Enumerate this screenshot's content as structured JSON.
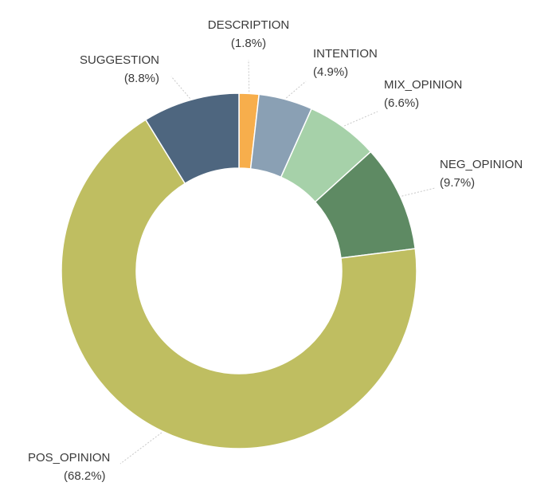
{
  "chart_data": {
    "type": "pie",
    "donut": true,
    "slices": [
      {
        "label": "DESCRIPTION",
        "percent_label": "(1.8%)",
        "value": 1.8,
        "color": "#F7AE4C"
      },
      {
        "label": "INTENTION",
        "percent_label": "(4.9%)",
        "value": 4.9,
        "color": "#8AA0B4"
      },
      {
        "label": "MIX_OPINION",
        "percent_label": "(6.6%)",
        "value": 6.6,
        "color": "#A6D1A9"
      },
      {
        "label": "NEG_OPINION",
        "percent_label": "(9.7%)",
        "value": 9.7,
        "color": "#5E8A63"
      },
      {
        "label": "POS_OPINION",
        "percent_label": "(68.2%)",
        "value": 68.2,
        "color": "#BFBE61"
      },
      {
        "label": "SUGGESTION",
        "percent_label": "(8.8%)",
        "value": 8.8,
        "color": "#4E667F"
      }
    ]
  }
}
